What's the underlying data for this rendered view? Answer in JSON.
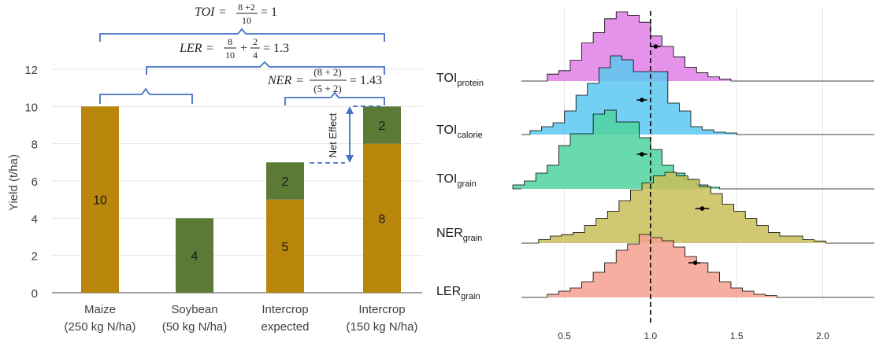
{
  "colors": {
    "maize": "#B8860B",
    "soybean": "#5A7A35",
    "brace": "#4472C4",
    "axis": "#404040",
    "hist_outline": "#000000",
    "ref_line": "#000000",
    "grid": "#E5E5E5"
  },
  "formulas": {
    "toi": {
      "lhs": "TOI",
      "eq": "=",
      "num": "8 +2",
      "den": "10",
      "rhs": "= 1"
    },
    "ler": {
      "lhs": "LER",
      "eq": "=",
      "n1": "8",
      "d1": "10",
      "plus": "+",
      "n2": "2",
      "d2": "4",
      "rhs": "= 1.3"
    },
    "ner": {
      "lhs": "NER",
      "eq": "=",
      "num": "(8 + 2)",
      "den": "(5 + 2)",
      "rhs": "= 1.43"
    }
  },
  "net_effect_label": "Net Effect",
  "chart_data": [
    {
      "type": "bar",
      "stacked": true,
      "title": "",
      "ylabel": "Yield (t/ha)",
      "ylim": [
        0,
        12
      ],
      "yticks": [
        "0",
        "2",
        "4",
        "6",
        "8",
        "10",
        "12"
      ],
      "categories": [
        {
          "line1": "Maize",
          "line2": "(250 kg N/ha)"
        },
        {
          "line1": "Soybean",
          "line2": "(50 kg N/ha)"
        },
        {
          "line1": "Intercrop",
          "line2": "expected"
        },
        {
          "line1": "Intercrop",
          "line2": "(150 kg N/ha)"
        }
      ],
      "series": [
        {
          "crop": "maize",
          "values": [
            10,
            0,
            5,
            8
          ],
          "labels": [
            "10",
            "",
            "5",
            "8"
          ]
        },
        {
          "crop": "soybean",
          "values": [
            0,
            4,
            2,
            2
          ],
          "labels": [
            "",
            "4",
            "2",
            "2"
          ]
        }
      ]
    },
    {
      "type": "histogram",
      "title": "",
      "xlim": [
        0.25,
        2.3
      ],
      "xticks": [
        "0.5",
        "1.0",
        "1.5",
        "2.0"
      ],
      "reference_line": 1.0,
      "bin_width": 0.0667,
      "ridges": [
        {
          "name": "TOI",
          "sub": "protein",
          "color": "#E07FE8",
          "start": 0.4,
          "mean": 1.03,
          "ci": [
            1.0,
            1.06
          ],
          "heights": [
            0.1,
            0.15,
            0.3,
            0.55,
            0.7,
            0.9,
            1.0,
            0.95,
            0.85,
            0.65,
            0.5,
            0.35,
            0.2,
            0.12,
            0.06,
            0.03
          ]
        },
        {
          "name": "TOI",
          "sub": "calorie",
          "color": "#5BC8F0",
          "start": 0.3,
          "mean": 0.95,
          "ci": [
            0.92,
            0.98
          ],
          "heights": [
            0.05,
            0.1,
            0.15,
            0.3,
            0.5,
            0.65,
            0.85,
            1.0,
            0.95,
            0.8,
            0.8,
            0.8,
            0.4,
            0.3,
            0.1,
            0.06,
            0.03,
            0.02
          ]
        },
        {
          "name": "TOI",
          "sub": "grain",
          "color": "#4FD4A0",
          "start": 0.2,
          "mean": 0.95,
          "ci": [
            0.92,
            0.98
          ],
          "heights": [
            0.05,
            0.1,
            0.2,
            0.3,
            0.55,
            0.7,
            0.7,
            0.95,
            1.0,
            0.85,
            0.85,
            0.65,
            0.5,
            0.3,
            0.2,
            0.12,
            0.05,
            0.02
          ]
        },
        {
          "name": "NER",
          "sub": "grain",
          "color": "#C9BE5A",
          "start": 0.35,
          "mean": 1.3,
          "ci": [
            1.26,
            1.34
          ],
          "heights": [
            0.05,
            0.1,
            0.12,
            0.15,
            0.25,
            0.35,
            0.45,
            0.6,
            0.75,
            0.85,
            0.95,
            1.0,
            0.95,
            0.9,
            0.8,
            0.7,
            0.55,
            0.45,
            0.35,
            0.25,
            0.15,
            0.1,
            0.1,
            0.05,
            0.03
          ]
        },
        {
          "name": "LER",
          "sub": "grain",
          "color": "#F4A090",
          "start": 0.4,
          "mean": 1.26,
          "ci": [
            1.22,
            1.29
          ],
          "heights": [
            0.05,
            0.1,
            0.15,
            0.25,
            0.4,
            0.55,
            0.75,
            0.85,
            1.0,
            0.95,
            0.9,
            0.8,
            0.65,
            0.55,
            0.4,
            0.25,
            0.15,
            0.1,
            0.05,
            0.03
          ]
        }
      ]
    }
  ]
}
